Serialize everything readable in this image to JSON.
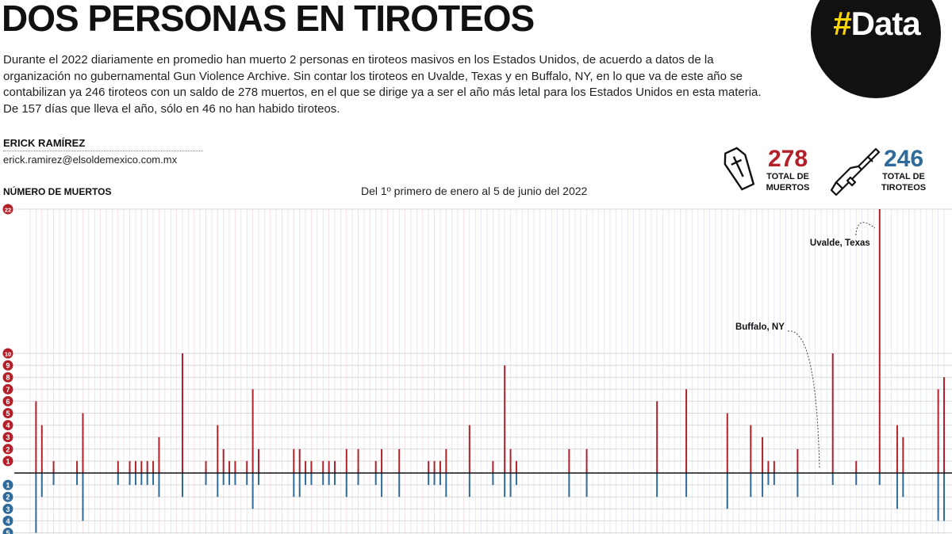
{
  "header": {
    "title": "DOS PERSONAS EN TIROTEOS",
    "body": "Durante el 2022 diariamente en promedio han muerto 2 personas en tiroteos masivos en los Estados Unidos, de acuerdo a datos de la organización no gubernamental Gun Violence Archive. Sin contar los tiroteos en Uvalde, Texas y en Buffalo, NY, en lo que va de este año se contabilizan ya 246 tiroteos con un saldo de 278 muertos, en el que se dirige ya a ser el año más letal para los Estados Unidos en esta materia. De 157 días que lleva el año, sólo en 46 no han habido tiroteos.",
    "author": "ERICK RAMÍREZ",
    "email": "erick.ramirez@elsoldemexico.com.mx",
    "badge_hash": "#",
    "badge_word": "Data"
  },
  "stats": {
    "deaths_value": "278",
    "deaths_label_1": "TOTAL DE",
    "deaths_label_2": "MUERTOS",
    "shootings_value": "246",
    "shootings_label_1": "TOTAL DE",
    "shootings_label_2": "TIROTEOS",
    "deaths_icon": "coffin-icon",
    "shootings_icon": "rifle-icon"
  },
  "colors": {
    "deaths": "#b3202a",
    "shootings": "#2f6a9a",
    "axis": "#111111",
    "grid": "#d9d9d9"
  },
  "chart_data": {
    "type": "bar",
    "title": "Del 1º primero de enero al 5 de junio del 2022",
    "ylabel": "NÚMERO DE MUERTOS",
    "ylim_top": [
      0,
      22
    ],
    "ylim_bottom": [
      0,
      5
    ],
    "top_ticks": [
      1,
      2,
      3,
      4,
      5,
      6,
      7,
      8,
      9,
      10,
      22
    ],
    "bottom_ticks": [
      1,
      2,
      3,
      4,
      5
    ],
    "annotations": [
      {
        "label": "Uvalde, Texas",
        "day": 145
      },
      {
        "label": "Buffalo, NY",
        "day": 135
      }
    ],
    "series": [
      {
        "name": "Muertos",
        "values": [
          0,
          6,
          4,
          0,
          1,
          0,
          0,
          0,
          1,
          5,
          0,
          0,
          0,
          0,
          0,
          1,
          0,
          1,
          1,
          1,
          1,
          1,
          3,
          0,
          0,
          0,
          10,
          0,
          0,
          0,
          1,
          0,
          4,
          2,
          1,
          1,
          0,
          1,
          7,
          2,
          0,
          0,
          0,
          0,
          0,
          2,
          2,
          1,
          1,
          0,
          1,
          1,
          1,
          0,
          2,
          0,
          2,
          0,
          0,
          1,
          2,
          0,
          0,
          2,
          0,
          0,
          0,
          0,
          1,
          1,
          1,
          2,
          0,
          0,
          0,
          4,
          0,
          0,
          0,
          1,
          0,
          9,
          2,
          1,
          0,
          0,
          0,
          0,
          0,
          0,
          0,
          0,
          2,
          0,
          0,
          2,
          0,
          0,
          0,
          0,
          0,
          0,
          0,
          0,
          0,
          0,
          0,
          6,
          0,
          0,
          0,
          0,
          7,
          0,
          0,
          0,
          0,
          0,
          0,
          5,
          0,
          0,
          0,
          4,
          0,
          3,
          1,
          1,
          0,
          0,
          0,
          2,
          0,
          0,
          0,
          0,
          0,
          10,
          0,
          0,
          0,
          1,
          0,
          0,
          0,
          22,
          0,
          0,
          4,
          3,
          0,
          0,
          0,
          0,
          0,
          7,
          8
        ]
      },
      {
        "name": "Tiroteos",
        "values": [
          0,
          5,
          2,
          0,
          1,
          0,
          0,
          0,
          1,
          4,
          0,
          0,
          0,
          0,
          0,
          1,
          0,
          1,
          1,
          1,
          1,
          1,
          2,
          0,
          0,
          0,
          2,
          0,
          0,
          0,
          1,
          0,
          2,
          1,
          1,
          1,
          0,
          1,
          3,
          1,
          0,
          0,
          0,
          0,
          0,
          2,
          2,
          1,
          1,
          0,
          1,
          1,
          1,
          0,
          2,
          0,
          1,
          0,
          0,
          1,
          2,
          0,
          0,
          2,
          0,
          0,
          0,
          0,
          1,
          1,
          1,
          2,
          0,
          0,
          0,
          2,
          0,
          0,
          0,
          1,
          0,
          2,
          2,
          1,
          0,
          0,
          0,
          0,
          0,
          0,
          0,
          0,
          2,
          0,
          0,
          2,
          0,
          0,
          0,
          0,
          0,
          0,
          0,
          0,
          0,
          0,
          0,
          2,
          0,
          0,
          0,
          0,
          2,
          0,
          0,
          0,
          0,
          0,
          0,
          3,
          0,
          0,
          0,
          2,
          0,
          2,
          1,
          1,
          0,
          0,
          0,
          2,
          0,
          0,
          0,
          0,
          0,
          1,
          0,
          0,
          0,
          1,
          0,
          0,
          0,
          1,
          0,
          0,
          3,
          2,
          0,
          0,
          0,
          0,
          0,
          4,
          4
        ]
      }
    ]
  }
}
